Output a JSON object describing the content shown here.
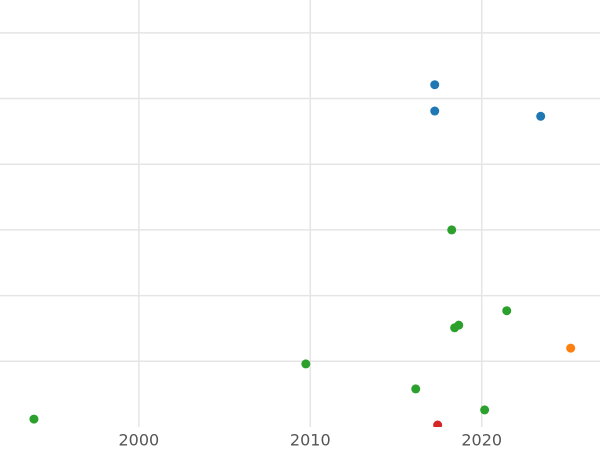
{
  "chart_data": {
    "type": "scatter",
    "xlim": [
      1991.9,
      2026.9
    ],
    "xticks": [
      2000,
      2010,
      2020
    ],
    "ylim": [
      0,
      6.5
    ],
    "ygrid": [
      1,
      2,
      3,
      4,
      5,
      6
    ],
    "grid": true,
    "series": [
      {
        "color": "#1f77b4",
        "x": [
          2017.26,
          2017.26,
          2023.44
        ],
        "values": [
          5.21,
          4.81,
          4.73
        ]
      },
      {
        "color": "#2ca02c",
        "x": [
          2018.25,
          2021.46,
          2018.66,
          2018.42,
          2009.74,
          2016.15,
          2020.17,
          1993.88
        ],
        "values": [
          3.0,
          1.77,
          1.55,
          1.51,
          0.96,
          0.58,
          0.26,
          0.12
        ]
      },
      {
        "color": "#ff7f0e",
        "x": [
          2025.19
        ],
        "values": [
          1.2
        ]
      },
      {
        "color": "#d62728",
        "x": [
          2017.43
        ],
        "values": [
          0.03
        ]
      }
    ]
  }
}
